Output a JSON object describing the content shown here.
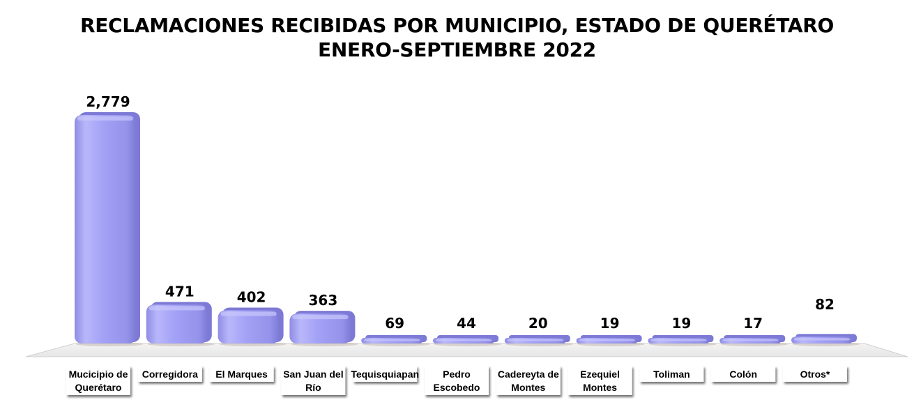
{
  "chart_data": {
    "type": "bar",
    "title": "RECLAMACIONES RECIBIDAS POR MUNICIPIO, ESTADO DE QUERÉTARO",
    "subtitle": "ENERO-SEPTIEMBRE 2022",
    "categories": [
      [
        "Mucicipio de",
        "Querétaro"
      ],
      [
        "Corregidora"
      ],
      [
        "El Marques"
      ],
      [
        "San Juan del",
        "Río"
      ],
      [
        "Tequisquiapan"
      ],
      [
        "Pedro",
        "Escobedo"
      ],
      [
        "Cadereyta de",
        "Montes"
      ],
      [
        "Ezequiel",
        "Montes"
      ],
      [
        "Toliman"
      ],
      [
        "Colón"
      ],
      [
        "Otros*"
      ]
    ],
    "values": [
      2779,
      471,
      402,
      363,
      69,
      44,
      20,
      19,
      19,
      17,
      82
    ],
    "value_labels": [
      "2,779",
      "471",
      "402",
      "363",
      "69",
      "44",
      "20",
      "19",
      "19",
      "17",
      "82"
    ],
    "xlabel": "",
    "ylabel": "",
    "ylim": [
      0,
      2779
    ],
    "grid": false,
    "legend": "none",
    "bar_color": "#9e9cf2",
    "bar_highlight": "#c9c8fb",
    "bar_shadow": "#7d7ad6"
  }
}
